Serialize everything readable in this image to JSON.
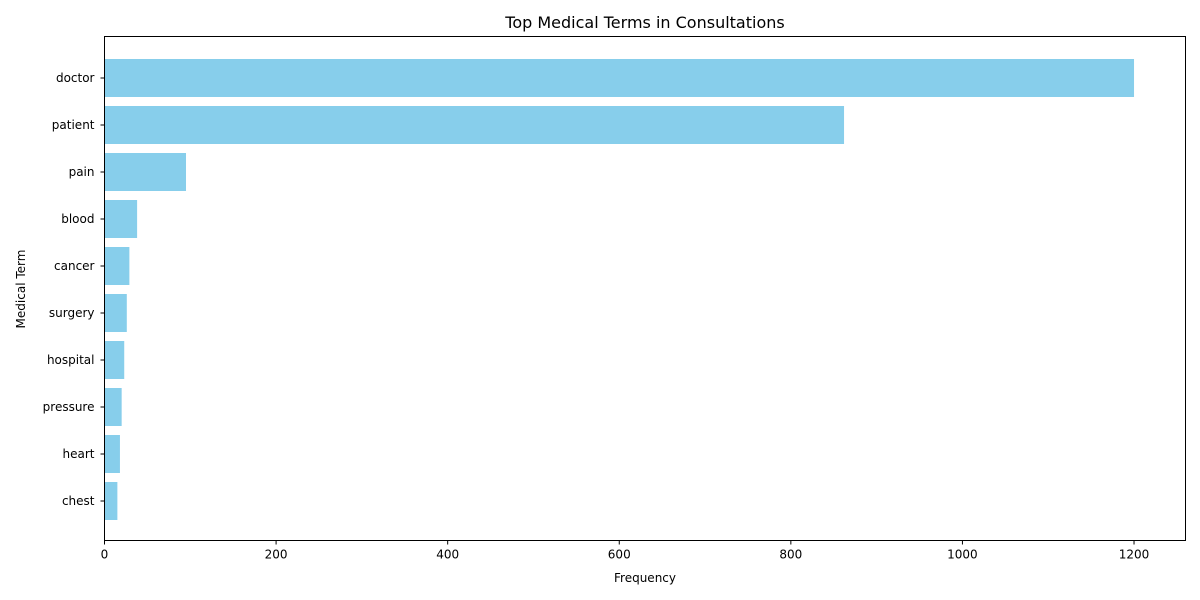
{
  "chart_data": {
    "type": "bar",
    "orientation": "horizontal",
    "title": "Top Medical Terms in Consultations",
    "xlabel": "Frequency",
    "ylabel": "Medical Term",
    "categories": [
      "doctor",
      "patient",
      "pain",
      "blood",
      "cancer",
      "surgery",
      "hospital",
      "pressure",
      "heart",
      "chest"
    ],
    "values": [
      1200,
      862,
      95,
      38,
      29,
      26,
      23,
      20,
      18,
      15
    ],
    "xlim": [
      0,
      1260
    ],
    "xticks": [
      0,
      200,
      400,
      600,
      800,
      1000,
      1200
    ],
    "bar_color": "#87ceeb",
    "grid": false,
    "legend": "none"
  }
}
